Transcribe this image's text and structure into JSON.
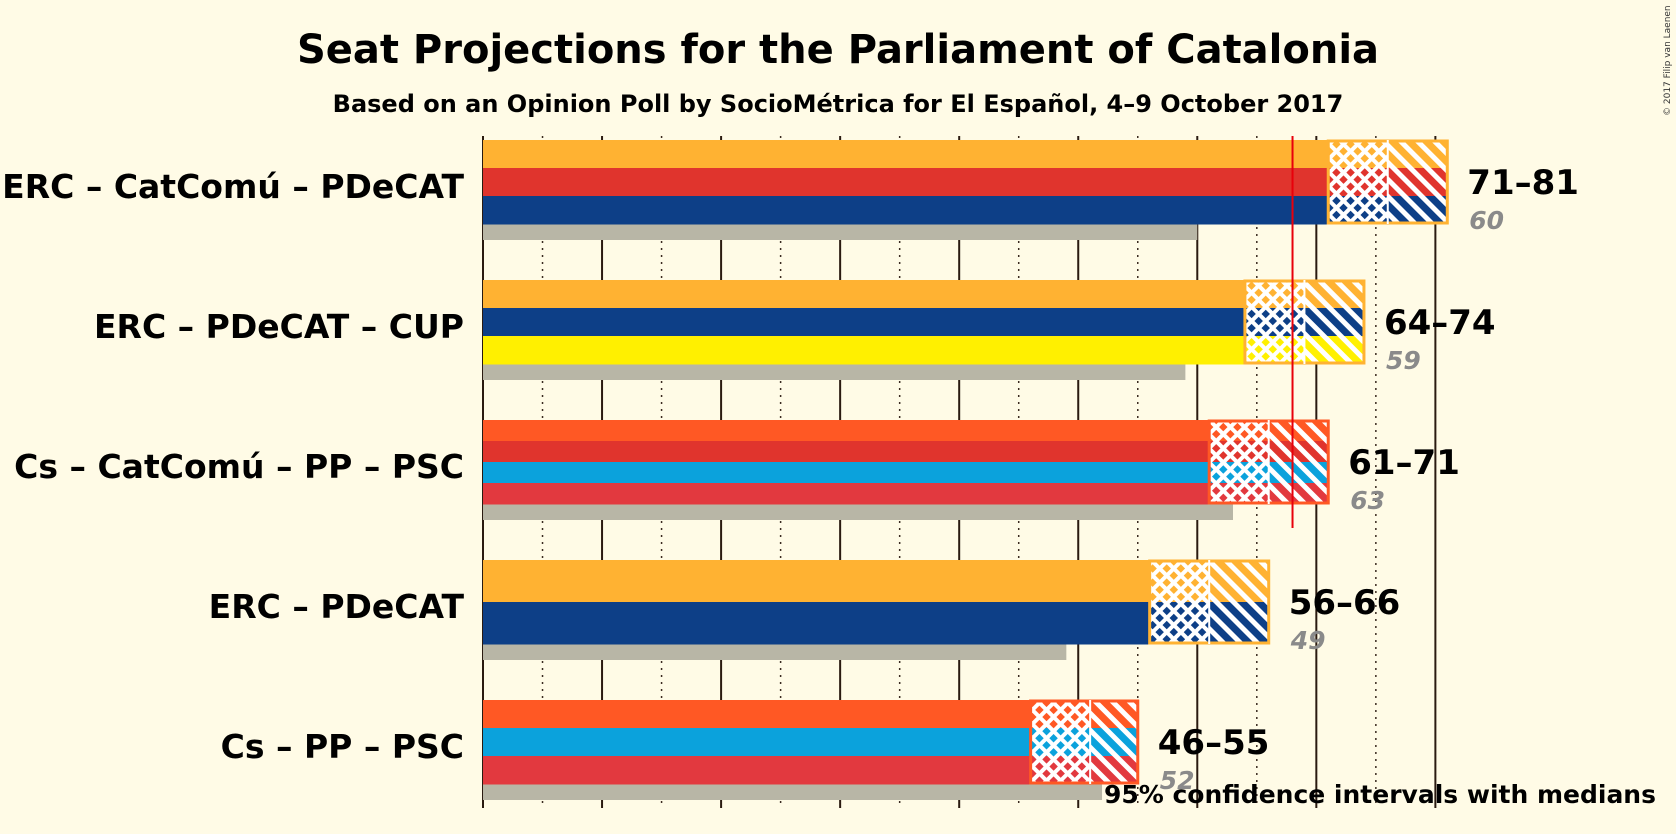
{
  "title": "Seat Projections for the Parliament of Catalonia",
  "subtitle": "Based on an Opinion Poll by SocioMétrica for El Español, 4–9 October 2017",
  "copyright": "© 2017 Filip van Laenen",
  "note": "95% confidence intervals with medians",
  "colors": {
    "background": "#fffbe6",
    "previous": "#b8b6a6",
    "majority_line": "#e8000b",
    "ERC": "#ffb232",
    "CatComu": "#e0342d",
    "PDeCAT": "#0d3f87",
    "CUP": "#fff000",
    "Cs": "#ff5824",
    "PP": "#0ba2dc",
    "PSC": "#e2393f"
  },
  "chart_data": {
    "type": "bar",
    "orientation": "horizontal",
    "xlim": [
      0,
      84
    ],
    "major_tick_step": 10,
    "minor_tick_step": 5,
    "majority": 68,
    "categories": [
      "ERC – CatComú – PDeCAT",
      "ERC – PDeCAT – CUP",
      "Cs – CatComú – PP – PSC",
      "ERC – PDeCAT",
      "Cs – PP – PSC"
    ],
    "series": [
      {
        "name": "low",
        "values": [
          71,
          64,
          61,
          56,
          46
        ]
      },
      {
        "name": "median",
        "values": [
          76,
          69,
          66,
          61,
          51
        ]
      },
      {
        "name": "high",
        "values": [
          81,
          74,
          71,
          66,
          55
        ]
      },
      {
        "name": "last_result",
        "values": [
          60,
          59,
          63,
          49,
          52
        ]
      }
    ],
    "range_labels": [
      "71–81",
      "64–74",
      "61–71",
      "56–66",
      "46–55"
    ],
    "last_labels": [
      "60",
      "59",
      "63",
      "49",
      "52"
    ],
    "parties": [
      [
        "ERC",
        "CatComu",
        "PDeCAT"
      ],
      [
        "ERC",
        "PDeCAT",
        "CUP"
      ],
      [
        "Cs",
        "CatComu",
        "PP",
        "PSC"
      ],
      [
        "ERC",
        "PDeCAT"
      ],
      [
        "Cs",
        "PP",
        "PSC"
      ]
    ]
  }
}
